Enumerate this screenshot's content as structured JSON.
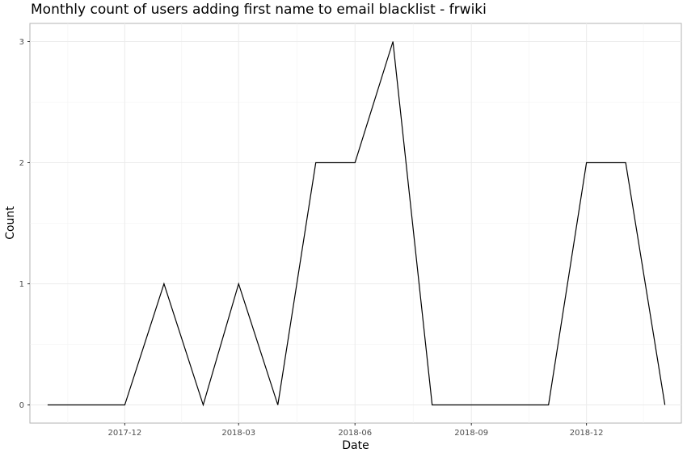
{
  "chart_data": {
    "type": "line",
    "title": "Monthly count of users adding first name to email blacklist - frwiki",
    "xlabel": "Date",
    "ylabel": "Count",
    "x": [
      "2017-10",
      "2017-11",
      "2017-12",
      "2018-01",
      "2018-02",
      "2018-03",
      "2018-04",
      "2018-05",
      "2018-06",
      "2018-07",
      "2018-08",
      "2018-09",
      "2018-10",
      "2018-11",
      "2018-12",
      "2019-01",
      "2019-02"
    ],
    "series": [
      {
        "values": [
          0,
          0,
          0,
          1,
          0,
          1,
          0,
          2,
          2,
          3,
          0,
          0,
          0,
          0,
          2,
          2,
          0
        ]
      }
    ],
    "x_ticks": [
      "2017-12",
      "2018-03",
      "2018-06",
      "2018-09",
      "2018-12"
    ],
    "y_ticks": [
      0,
      1,
      2,
      3
    ],
    "ylim": [
      -0.15,
      3.15
    ],
    "xlim": [
      "2017-09-17",
      "2019-02-14"
    ],
    "grid": true,
    "line_color": "#000000"
  }
}
